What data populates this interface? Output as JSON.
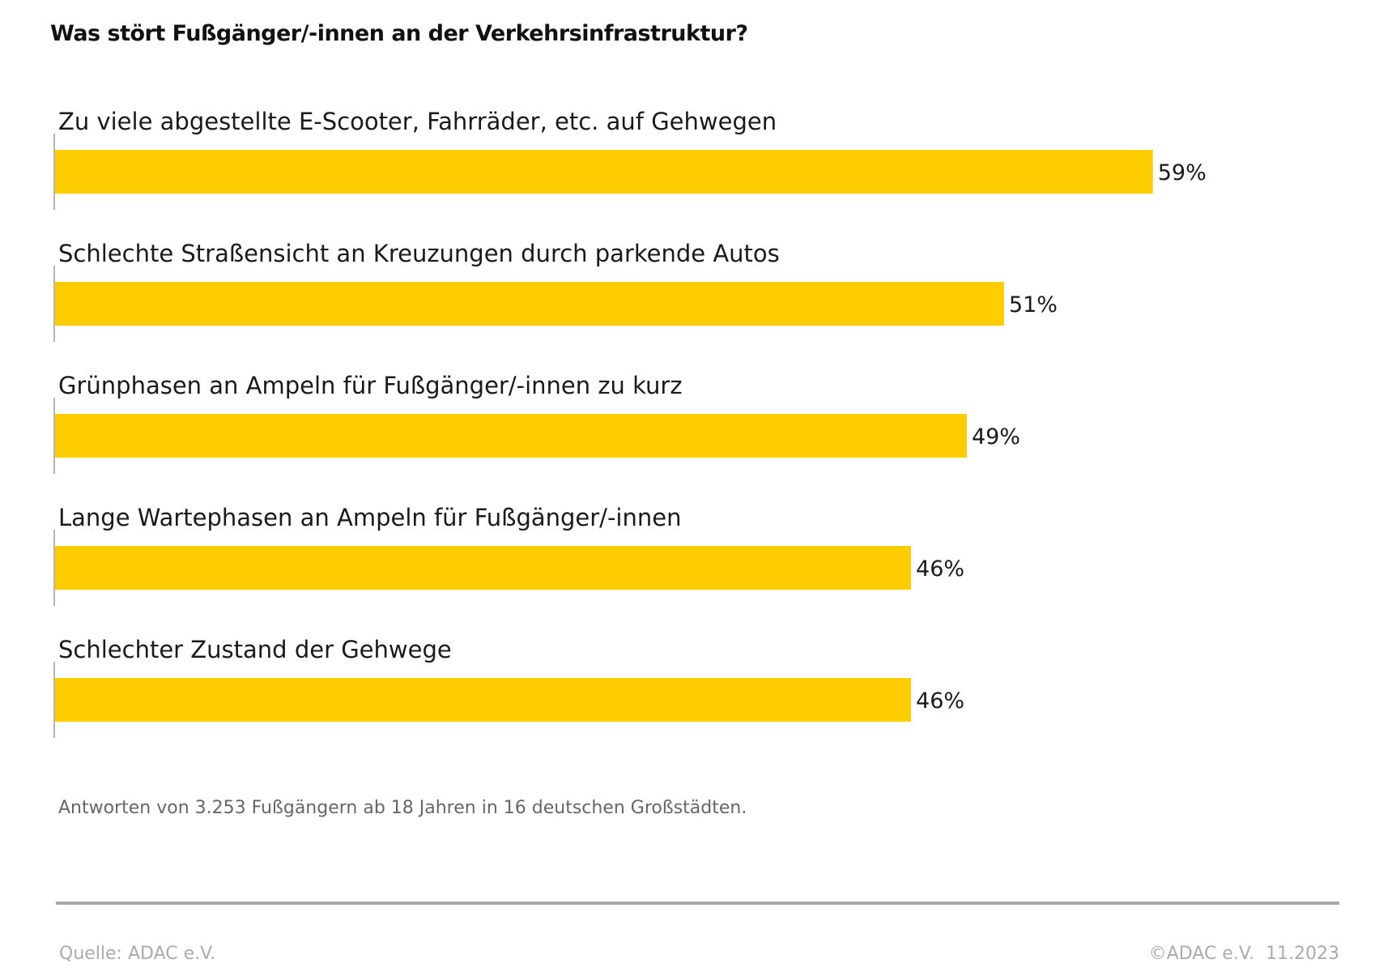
{
  "chart_data": {
    "type": "bar",
    "orientation": "horizontal",
    "title": "Was stört Fußgänger/-innen an der Verkehrsinfrastruktur?",
    "categories": [
      "Zu viele abgestellte E-Scooter, Fahrräder, etc. auf Gehwegen",
      "Schlechte Straßensicht an Kreuzungen durch parkende Autos",
      "Grünphasen an Ampeln für Fußgänger/-innen zu kurz",
      "Lange Wartephasen an Ampeln für Fußgänger/-innen",
      "Schlechter Zustand der Gehwege"
    ],
    "values": [
      59,
      51,
      49,
      46,
      46
    ],
    "value_labels": [
      "59%",
      "51%",
      "49%",
      "46%",
      "46%"
    ],
    "unit": "%",
    "xlabel": "",
    "ylabel": "",
    "grid": false,
    "legend": "none",
    "bar_color": "#FFCC00",
    "xlim": [
      0,
      70.5
    ]
  },
  "footer": {
    "note": "Antworten von 3.253 Fußgängern ab 18 Jahren in 16 deutschen Großstädten.",
    "source": "Quelle: ADAC e.V.",
    "copyright": "©ADAC e.V.  11.2023"
  }
}
